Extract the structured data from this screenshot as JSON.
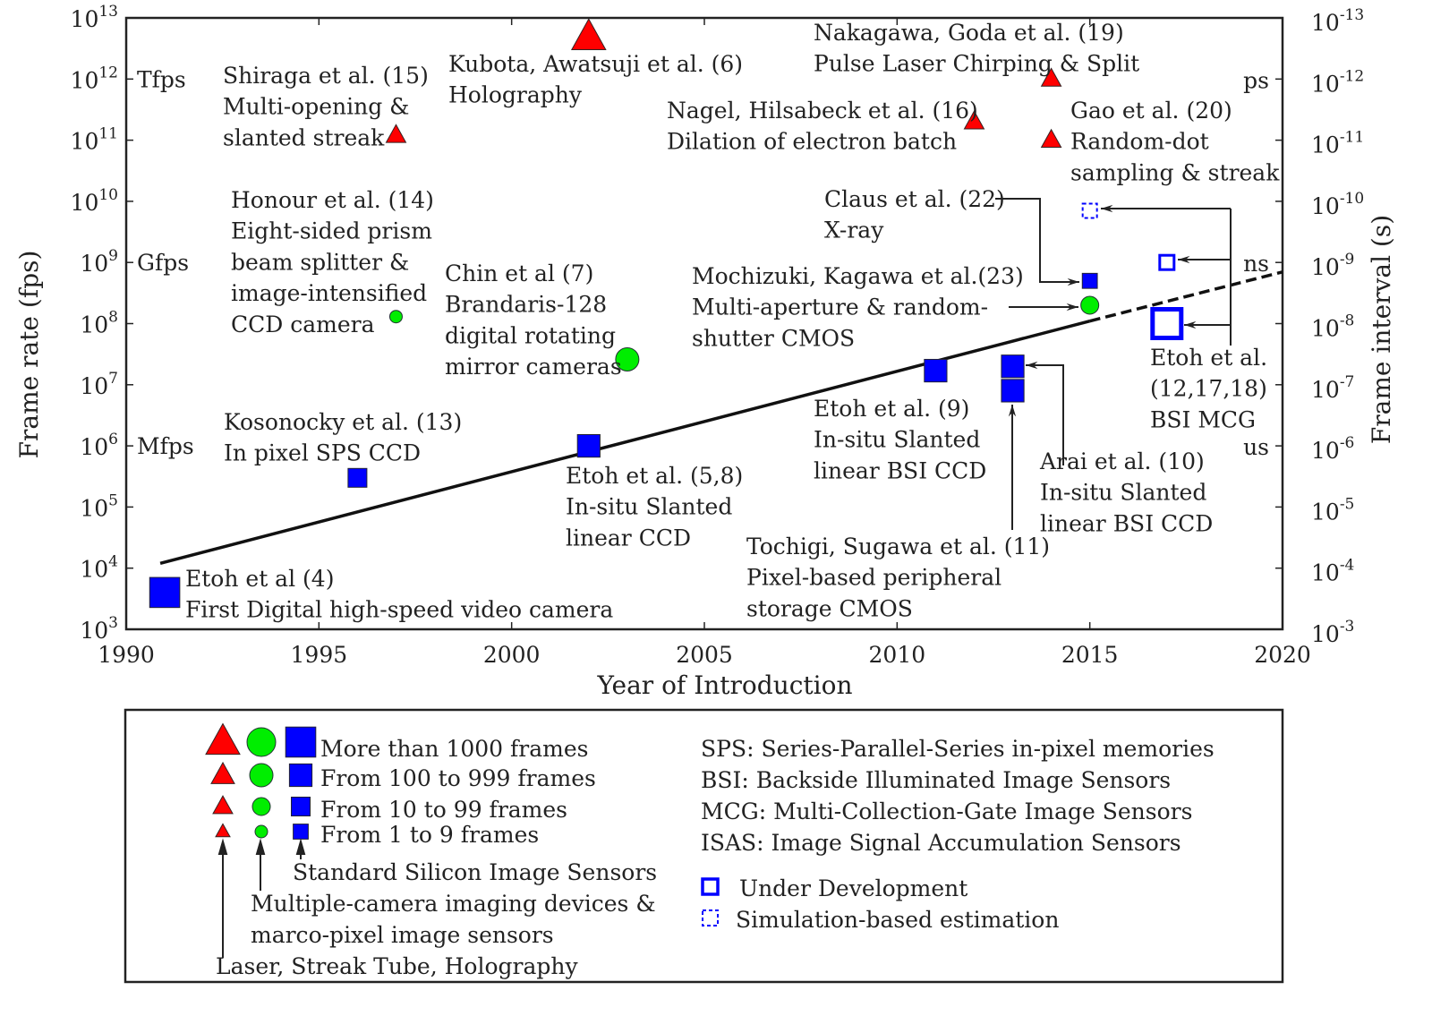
{
  "chart_data": {
    "type": "scatter",
    "xlabel": "Year of Introduction",
    "ylabel": "Frame rate (fps)",
    "y2label": "Frame interval (s)",
    "xlim": [
      1990,
      2020
    ],
    "ylim": [
      1000.0,
      10000000000000.0
    ],
    "yscale": "log",
    "xticks": [
      "1990",
      "1995",
      "2000",
      "2005",
      "2010",
      "2015",
      "2020"
    ],
    "yticks_left": [
      [
        "10",
        "3"
      ],
      [
        "10",
        "4"
      ],
      [
        "10",
        "5"
      ],
      [
        "10",
        "6"
      ],
      [
        "10",
        "7"
      ],
      [
        "10",
        "8"
      ],
      [
        "10",
        "9"
      ],
      [
        "10",
        "10"
      ],
      [
        "10",
        "11"
      ],
      [
        "10",
        "12"
      ],
      [
        "10",
        "13"
      ]
    ],
    "yticks_right": [
      [
        "10",
        "-3"
      ],
      [
        "10",
        "-4"
      ],
      [
        "10",
        "-5"
      ],
      [
        "10",
        "-6"
      ],
      [
        "10",
        "-7"
      ],
      [
        "10",
        "-8"
      ],
      [
        "10",
        "-9"
      ],
      [
        "10",
        "-10"
      ],
      [
        "10",
        "-11"
      ],
      [
        "10",
        "-12"
      ],
      [
        "10",
        "-13"
      ]
    ],
    "unit_labels_left": [
      {
        "text": "Mfps",
        "value": 1000000.0
      },
      {
        "text": "Gfps",
        "value": 1000000000.0
      },
      {
        "text": "Tfps",
        "value": 1000000000000.0
      }
    ],
    "unit_labels_right": [
      {
        "text": "us",
        "value": 1000000.0
      },
      {
        "text": "ns",
        "value": 1000000000.0
      },
      {
        "text": "ps",
        "value": 1000000000000.0
      }
    ],
    "trend_line": {
      "x": [
        1991,
        2015,
        2020
      ],
      "y": [
        12000.0,
        110000000.0,
        700000000.0
      ],
      "solid_until": 2015
    },
    "colors": {
      "triangle": "#ff0000",
      "circle": "#00ee00",
      "square": "#0000ff"
    },
    "points": [
      {
        "label": [
          "Etoh et al (4)",
          "First Digital high-speed video camera"
        ],
        "x": 1991,
        "y": 4000.0,
        "shape": "square",
        "size": 4
      },
      {
        "label": [
          "Kosonocky et al. (13)",
          "In pixel SPS CCD"
        ],
        "x": 1996,
        "y": 300000.0,
        "shape": "square",
        "size": 2
      },
      {
        "label": [
          "Etoh et al. (5,8)",
          "In-situ Slanted",
          "linear CCD"
        ],
        "x": 2002,
        "y": 1000000.0,
        "shape": "square",
        "size": 3
      },
      {
        "label": [
          "Etoh et al. (9)",
          "In-situ Slanted",
          "linear BSI CCD"
        ],
        "x": 2011,
        "y": 17000000.0,
        "shape": "square",
        "size": 3
      },
      {
        "label": [
          "Arai et al. (10)",
          "In-situ Slanted",
          "linear BSI CCD"
        ],
        "x": 2013,
        "y": 20000000.0,
        "shape": "square",
        "size": 3
      },
      {
        "label": [
          "Tochigi, Sugawa et al. (11)",
          "Pixel-based peripheral",
          "storage CMOS"
        ],
        "x": 2013,
        "y": 8000000.0,
        "shape": "square",
        "size": 3
      },
      {
        "label": [
          "Claus et al. (22)",
          "X-ray"
        ],
        "x": 2015,
        "y": 500000000.0,
        "shape": "square",
        "size": 1
      },
      {
        "label": [
          "Mochizuki, Kagawa et al.(23)",
          "Multi-aperture & random-",
          "shutter CMOS"
        ],
        "x": 2015,
        "y": 200000000.0,
        "shape": "circle",
        "size": 2
      },
      {
        "label": [
          "Etoh et al.",
          "(12,17,18)",
          "BSI MCG"
        ],
        "x": 2017,
        "y": 100000000.0,
        "shape": "square",
        "size": 4,
        "status": "under-development"
      },
      {
        "label": [],
        "x": 2017,
        "y": 1000000000.0,
        "shape": "square",
        "size": 1,
        "status": "under-development"
      },
      {
        "label": [],
        "x": 2015,
        "y": 7000000000.0,
        "shape": "square",
        "size": 1,
        "status": "simulation"
      },
      {
        "label": [
          "Honour et al. (14)",
          "Eight-sided prism",
          "beam splitter &",
          "image-intensified",
          "CCD camera"
        ],
        "x": 1997,
        "y": 130000000.0,
        "shape": "circle",
        "size": 1
      },
      {
        "label": [
          "Chin et al (7)",
          "Brandaris-128",
          "digital rotating",
          "mirror cameras"
        ],
        "x": 2003,
        "y": 26000000.0,
        "shape": "circle",
        "size": 3
      },
      {
        "label": [
          "Shiraga et al. (15)",
          "Multi-opening &",
          "slanted streak"
        ],
        "x": 1997,
        "y": 120000000000.0,
        "shape": "triangle",
        "size": 2
      },
      {
        "label": [
          "Kubota, Awatsuji et al. (6)",
          "Holography"
        ],
        "x": 2002,
        "y": 4800000000000.0,
        "shape": "triangle",
        "size": 4
      },
      {
        "label": [
          "Nagel, Hilsabeck et al. (16)",
          "Dilation of electron batch"
        ],
        "x": 2012,
        "y": 200000000000.0,
        "shape": "triangle",
        "size": 2
      },
      {
        "label": [
          "Nakagawa, Goda et al. (19)",
          "Pulse Laser Chirping & Split"
        ],
        "x": 2014,
        "y": 1000000000000.0,
        "shape": "triangle",
        "size": 2
      },
      {
        "label": [
          "Gao et al. (20)",
          "Random-dot",
          "sampling & streak"
        ],
        "x": 2014,
        "y": 100000000000.0,
        "shape": "triangle",
        "size": 2
      }
    ],
    "legend": {
      "sizes": [
        "More than 1000 frames",
        "From 100 to 999 frames",
        "From 10 to 99 frames",
        "From 1 to 9 frames"
      ],
      "categories": [
        "Laser, Streak Tube, Holography",
        "Multiple-camera imaging devices &",
        "marco-pixel image sensors",
        "Standard Silicon Image Sensors"
      ],
      "abbreviations": [
        "SPS: Series-Parallel-Series in-pixel memories",
        "BSI: Backside Illuminated Image Sensors",
        "MCG: Multi-Collection-Gate Image Sensors",
        "ISAS: Image Signal Accumulation Sensors"
      ],
      "under_development": "Under Development",
      "simulation": "Simulation-based estimation"
    }
  }
}
